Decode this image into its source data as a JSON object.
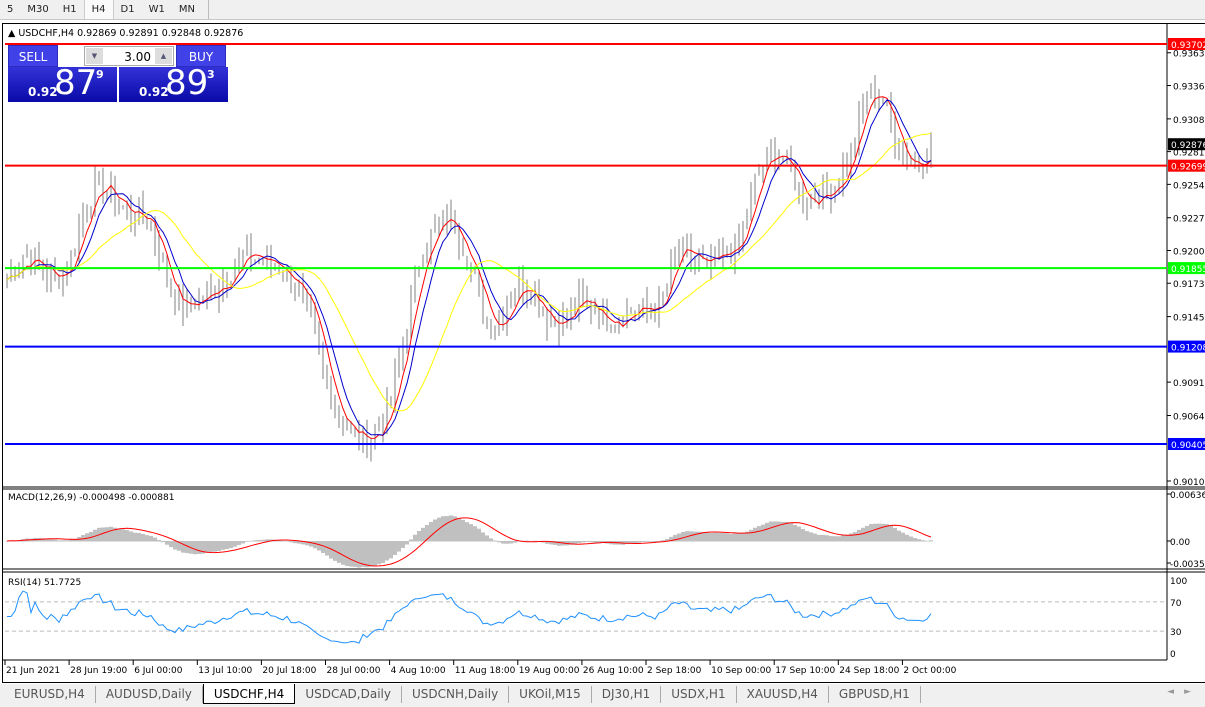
{
  "timeframes": [
    "5",
    "M30",
    "H1",
    "H4",
    "D1",
    "W1",
    "MN"
  ],
  "active_timeframe": "H4",
  "chart": {
    "symbol_line": "USDCHF,H4  0.92869 0.92891 0.92848 0.92876",
    "macd_label": "MACD(12,26,9) -0.000498 -0.000881",
    "rsi_label": "RSI(14) 51.7725"
  },
  "trade_panel": {
    "sell_label": "SELL",
    "buy_label": "BUY",
    "lot": "3.00",
    "sell_prefix": "0.92",
    "sell_big": "87",
    "sell_pip": "9",
    "buy_prefix": "0.92",
    "buy_big": "89",
    "buy_pip": "3"
  },
  "price_axis": {
    "ticks": [
      "0.93630",
      "0.93360",
      "0.93085",
      "0.92815",
      "0.92545",
      "0.92270",
      "0.92000",
      "0.91730",
      "0.91455",
      "0.90915",
      "0.90640",
      "0.90100"
    ],
    "range": [
      0.901,
      0.93702
    ]
  },
  "levels": [
    {
      "price": "0.93702",
      "color": "#ff0000"
    },
    {
      "price": "0.92699",
      "color": "#ff0000"
    },
    {
      "price": "0.91855",
      "color": "#00ff00"
    },
    {
      "price": "0.91208",
      "color": "#0000ff"
    },
    {
      "price": "0.90405",
      "color": "#0000ff"
    }
  ],
  "current_price": "0.92876",
  "price_path": [
    0.91757,
    0.91963,
    0.9188,
    0.91757,
    0.91922,
    0.92416,
    0.9254,
    0.92375,
    0.92293,
    0.92251,
    0.91757,
    0.9151,
    0.91592,
    0.91675,
    0.9184,
    0.91963,
    0.91922,
    0.9188,
    0.91757,
    0.91427,
    0.90933,
    0.90603,
    0.90438,
    0.9048,
    0.90686,
    0.91345,
    0.92004,
    0.9221,
    0.92251,
    0.91922,
    0.91427,
    0.91427,
    0.91757,
    0.91675,
    0.91427,
    0.91427,
    0.91592,
    0.9151,
    0.91427,
    0.9151,
    0.9151,
    0.9151,
    0.92004,
    0.91922,
    0.9184,
    0.91963,
    0.92046,
    0.92581,
    0.92829,
    0.92705,
    0.92416,
    0.92458,
    0.9254,
    0.92829,
    0.93323,
    0.93241,
    0.92829,
    0.92705,
    0.9287
  ],
  "macd_axis": [
    "0.00636",
    "0.00",
    "-0.00350"
  ],
  "rsi_axis": [
    "100",
    "70",
    "30",
    "0"
  ],
  "time_axis": [
    "21 Jun 2021",
    "28 Jun 19:00",
    "6 Jul 00:00",
    "13 Jul 10:00",
    "20 Jul 18:00",
    "28 Jul 00:00",
    "4 Aug 10:00",
    "11 Aug 18:00",
    "19 Aug 00:00",
    "26 Aug 10:00",
    "2 Sep 18:00",
    "10 Sep 00:00",
    "17 Sep 10:00",
    "24 Sep 18:00",
    "2 Oct 00:00"
  ],
  "tabs": [
    "EURUSD,H4",
    "AUDUSD,Daily",
    "USDCHF,H4",
    "USDCAD,Daily",
    "USDCNH,Daily",
    "UKOil,M15",
    "DJ30,H1",
    "USDX,H1",
    "XAUUSD,H4",
    "GBPUSD,H1"
  ],
  "active_tab": "USDCHF,H4",
  "colors": {
    "ma_fast": "#ff0000",
    "ma_mid": "#0000cc",
    "ma_slow": "#ffff00",
    "bars": "#808080",
    "macd_hist": "#c0c0c0",
    "macd_signal": "#ff0000",
    "rsi": "#1e90ff"
  }
}
